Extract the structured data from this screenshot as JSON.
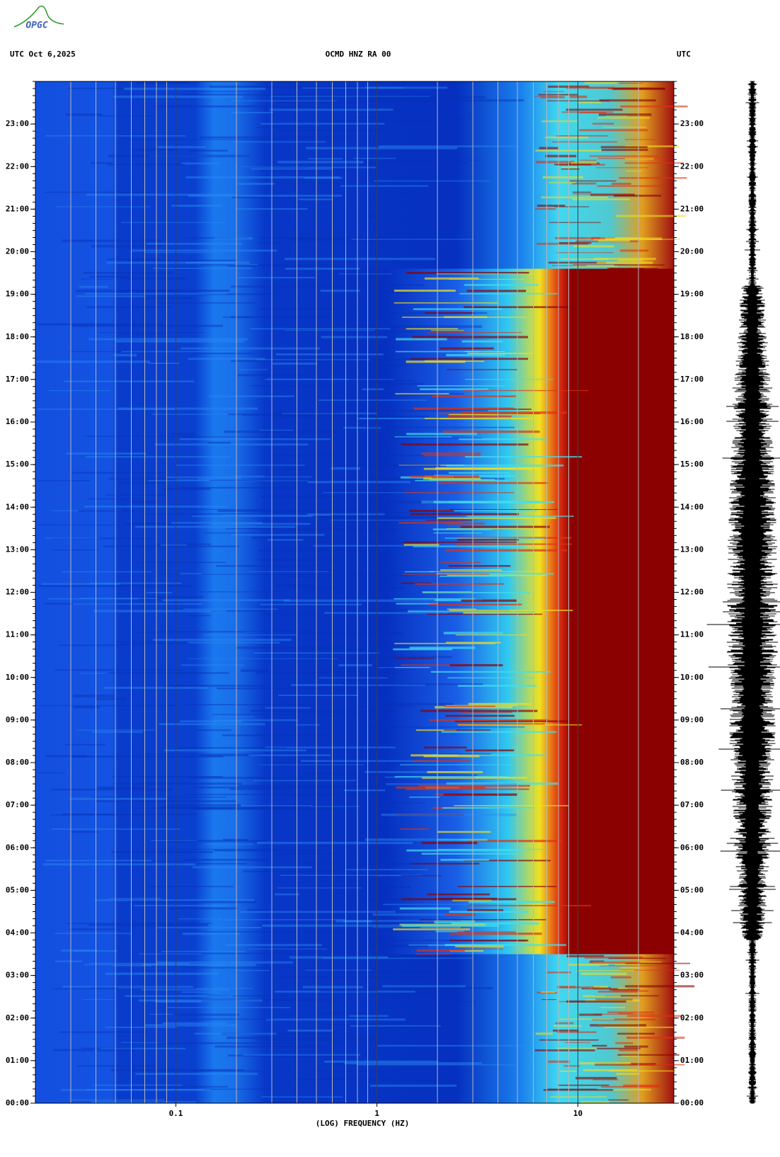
{
  "chart_data": {
    "type": "spectrogram",
    "logo": "OPGC",
    "title": "OCMD HNZ RA 00",
    "header_left": "UTC  Oct 6,2025",
    "header_right": "UTC",
    "xlabel": "(LOG) FREQUENCY (HZ)",
    "xscale": "log",
    "xlim": [
      0.02,
      30
    ],
    "xticks": [
      0.1,
      1,
      10
    ],
    "ylim": [
      0,
      24
    ],
    "yticks": [
      {
        "value": 0,
        "label": "00:00"
      },
      {
        "value": 1,
        "label": "01:00"
      },
      {
        "value": 2,
        "label": "02:00"
      },
      {
        "value": 3,
        "label": "03:00"
      },
      {
        "value": 4,
        "label": "04:00"
      },
      {
        "value": 5,
        "label": "05:00"
      },
      {
        "value": 6,
        "label": "06:00"
      },
      {
        "value": 7,
        "label": "07:00"
      },
      {
        "value": 8,
        "label": "08:00"
      },
      {
        "value": 9,
        "label": "09:00"
      },
      {
        "value": 10,
        "label": "10:00"
      },
      {
        "value": 11,
        "label": "11:00"
      },
      {
        "value": 12,
        "label": "12:00"
      },
      {
        "value": 13,
        "label": "13:00"
      },
      {
        "value": 14,
        "label": "14:00"
      },
      {
        "value": 15,
        "label": "15:00"
      },
      {
        "value": 16,
        "label": "16:00"
      },
      {
        "value": 17,
        "label": "17:00"
      },
      {
        "value": 18,
        "label": "18:00"
      },
      {
        "value": 19,
        "label": "19:00"
      },
      {
        "value": 20,
        "label": "20:00"
      },
      {
        "value": 21,
        "label": "21:00"
      },
      {
        "value": 22,
        "label": "22:00"
      },
      {
        "value": 23,
        "label": "23:00"
      }
    ],
    "grid": true
  }
}
